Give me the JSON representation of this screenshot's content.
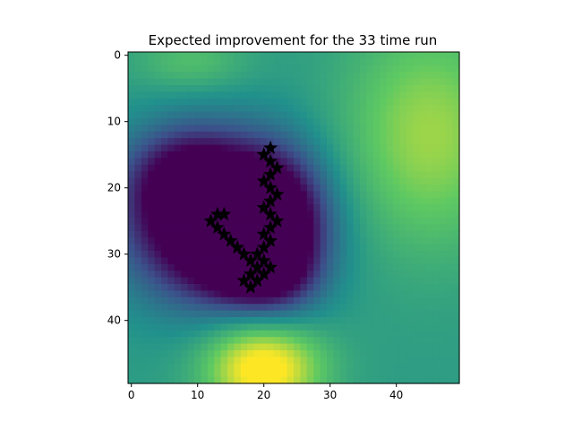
{
  "chart_data": {
    "type": "heatmap",
    "title": "Expected improvement for the 33 time run",
    "xlabel": "",
    "ylabel": "",
    "colormap": "viridis",
    "grid": false,
    "shape": [
      50,
      50
    ],
    "xlim": [
      -0.5,
      49.5
    ],
    "ylim": [
      49.5,
      -0.5
    ],
    "xticks": [
      0,
      10,
      20,
      30,
      40
    ],
    "yticks": [
      0,
      10,
      20,
      30,
      40
    ],
    "field": {
      "baseline": 0.55,
      "minima": [
        {
          "cx": 13,
          "cy": 25,
          "sx": 9,
          "sy": 8,
          "depth": 0.95
        },
        {
          "cx": 22,
          "cy": 27,
          "sx": 5,
          "sy": 8,
          "depth": 0.5
        },
        {
          "cx": 8,
          "cy": 18,
          "sx": 6,
          "sy": 5,
          "depth": 0.3
        },
        {
          "cx": 18,
          "cy": 33,
          "sx": 5,
          "sy": 3,
          "depth": 0.3
        }
      ],
      "maxima": [
        {
          "cx": 20,
          "cy": 47,
          "sx": 6,
          "sy": 5,
          "height": 0.55
        },
        {
          "cx": 45,
          "cy": 12,
          "sx": 9,
          "sy": 12,
          "height": 0.3
        },
        {
          "cx": 9,
          "cy": 1,
          "sx": 6,
          "sy": 3,
          "height": 0.15
        }
      ]
    },
    "markers": {
      "symbol": "star",
      "color": "#000000",
      "points": [
        [
          21,
          14
        ],
        [
          20,
          15
        ],
        [
          21,
          16
        ],
        [
          22,
          17
        ],
        [
          21,
          18
        ],
        [
          20,
          19
        ],
        [
          21,
          20
        ],
        [
          22,
          21
        ],
        [
          21,
          22
        ],
        [
          20,
          23
        ],
        [
          21,
          24
        ],
        [
          22,
          25
        ],
        [
          21,
          26
        ],
        [
          20,
          27
        ],
        [
          21,
          28
        ],
        [
          20,
          29
        ],
        [
          19,
          30
        ],
        [
          20,
          31
        ],
        [
          21,
          32
        ],
        [
          20,
          33
        ],
        [
          19,
          34
        ],
        [
          18,
          35
        ],
        [
          17,
          34
        ],
        [
          18,
          33
        ],
        [
          19,
          32
        ],
        [
          18,
          31
        ],
        [
          17,
          30
        ],
        [
          16,
          29
        ],
        [
          15,
          28
        ],
        [
          14,
          27
        ],
        [
          13,
          26
        ],
        [
          12,
          25
        ],
        [
          13,
          24
        ],
        [
          14,
          24
        ]
      ]
    }
  }
}
